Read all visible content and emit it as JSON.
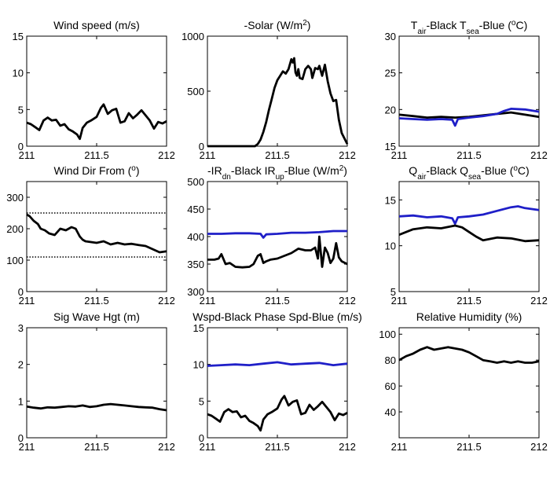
{
  "chart_data": [
    {
      "type": "line",
      "title": "Wind speed (m/s)",
      "xlim": [
        211,
        212
      ],
      "ylim": [
        0,
        15
      ],
      "xticks": [
        "211",
        "211.5",
        "212"
      ],
      "yticks": [
        "0",
        "5",
        "10",
        "15"
      ],
      "series": [
        {
          "color": "#000000",
          "x": [
            211.0,
            211.03,
            211.06,
            211.09,
            211.12,
            211.15,
            211.18,
            211.21,
            211.24,
            211.27,
            211.3,
            211.33,
            211.36,
            211.38,
            211.4,
            211.43,
            211.46,
            211.5,
            211.53,
            211.55,
            211.58,
            211.61,
            211.64,
            211.67,
            211.7,
            211.73,
            211.76,
            211.79,
            211.82,
            211.85,
            211.88,
            211.91,
            211.94,
            211.97,
            212.0
          ],
          "y": [
            3.2,
            3.0,
            2.6,
            2.2,
            3.5,
            3.9,
            3.5,
            3.6,
            2.8,
            3.0,
            2.3,
            2.0,
            1.6,
            1.0,
            2.5,
            3.2,
            3.5,
            4.0,
            5.2,
            5.7,
            4.4,
            4.9,
            5.1,
            3.2,
            3.4,
            4.5,
            3.8,
            4.3,
            4.9,
            4.2,
            3.5,
            2.4,
            3.3,
            3.1,
            3.4
          ]
        }
      ]
    },
    {
      "type": "line",
      "title": "-Solar (W/m²)",
      "title_parts": {
        "main": "-Solar (W/m",
        "sup": "2",
        "end": ")"
      },
      "xlim": [
        211,
        212
      ],
      "ylim": [
        0,
        1000
      ],
      "xticks": [
        "211",
        "211.5",
        "212"
      ],
      "yticks": [
        "0",
        "500",
        "1000"
      ],
      "series": [
        {
          "color": "#000000",
          "x": [
            211.0,
            211.3,
            211.34,
            211.36,
            211.38,
            211.4,
            211.42,
            211.44,
            211.46,
            211.48,
            211.5,
            211.52,
            211.54,
            211.56,
            211.58,
            211.6,
            211.61,
            211.62,
            211.63,
            211.64,
            211.65,
            211.66,
            211.68,
            211.7,
            211.72,
            211.74,
            211.75,
            211.77,
            211.79,
            211.8,
            211.82,
            211.84,
            211.86,
            211.88,
            211.9,
            211.92,
            211.94,
            211.96,
            212.0
          ],
          "y": [
            0,
            0,
            0,
            20,
            60,
            130,
            220,
            330,
            430,
            530,
            600,
            640,
            680,
            660,
            700,
            790,
            760,
            800,
            670,
            640,
            700,
            620,
            610,
            700,
            730,
            700,
            620,
            710,
            700,
            730,
            640,
            740,
            590,
            480,
            410,
            420,
            240,
            120,
            20
          ]
        }
      ]
    },
    {
      "type": "line",
      "title": "T_air-Black  T_sea-Blue (°C)",
      "title_parts": [
        {
          "t": "T",
          "s": "n"
        },
        {
          "t": "air",
          "s": "sub"
        },
        {
          "t": "-Black  T",
          "s": "n"
        },
        {
          "t": "sea",
          "s": "sub"
        },
        {
          "t": "-Blue (",
          "s": "n"
        },
        {
          "t": "o",
          "s": "sup"
        },
        {
          "t": "C)",
          "s": "n"
        }
      ],
      "xlim": [
        211,
        212
      ],
      "ylim": [
        15,
        30
      ],
      "xticks": [
        "211",
        "211.5",
        "212"
      ],
      "yticks": [
        "15",
        "20",
        "25",
        "30"
      ],
      "series": [
        {
          "color": "#000000",
          "x": [
            211.0,
            211.1,
            211.2,
            211.3,
            211.4,
            211.5,
            211.6,
            211.7,
            211.8,
            211.9,
            212.0
          ],
          "y": [
            19.3,
            19.1,
            18.9,
            19.0,
            18.9,
            19.0,
            19.2,
            19.4,
            19.6,
            19.3,
            19.0
          ]
        },
        {
          "color": "#1f1fc8",
          "x": [
            211.0,
            211.1,
            211.2,
            211.3,
            211.38,
            211.4,
            211.42,
            211.5,
            211.6,
            211.7,
            211.75,
            211.8,
            211.9,
            212.0
          ],
          "y": [
            18.8,
            18.7,
            18.6,
            18.7,
            18.6,
            17.8,
            18.7,
            18.9,
            19.1,
            19.4,
            19.8,
            20.1,
            20.0,
            19.7
          ]
        }
      ]
    },
    {
      "type": "line",
      "title": "Wind Dir From (°)",
      "title_parts": {
        "main": "Wind Dir From (",
        "sup": "o",
        "end": ")"
      },
      "xlim": [
        211,
        212
      ],
      "ylim": [
        0,
        350
      ],
      "xticks": [
        "211",
        "211.5",
        "212"
      ],
      "yticks": [
        "0",
        "100",
        "200",
        "300"
      ],
      "reference_lines": [
        250,
        110
      ],
      "series": [
        {
          "color": "#000000",
          "x": [
            211.0,
            211.02,
            211.05,
            211.08,
            211.1,
            211.13,
            211.16,
            211.2,
            211.24,
            211.28,
            211.32,
            211.35,
            211.38,
            211.4,
            211.42,
            211.45,
            211.5,
            211.55,
            211.6,
            211.65,
            211.7,
            211.75,
            211.8,
            211.85,
            211.9,
            211.95,
            212.0
          ],
          "y": [
            245,
            240,
            225,
            215,
            200,
            195,
            185,
            180,
            200,
            195,
            205,
            200,
            175,
            165,
            160,
            158,
            155,
            160,
            150,
            155,
            150,
            152,
            148,
            145,
            135,
            125,
            128
          ]
        }
      ]
    },
    {
      "type": "line",
      "title": "-IR_dn-Black  IR_up-Blue (W/m²)",
      "title_parts": [
        {
          "t": "-IR",
          "s": "n"
        },
        {
          "t": "dn",
          "s": "sub"
        },
        {
          "t": "-Black  IR",
          "s": "n"
        },
        {
          "t": "up",
          "s": "sub"
        },
        {
          "t": "-Blue (W/m",
          "s": "n"
        },
        {
          "t": "2",
          "s": "sup"
        },
        {
          "t": ")",
          "s": "n"
        }
      ],
      "xlim": [
        211,
        212
      ],
      "ylim": [
        300,
        500
      ],
      "xticks": [
        "211",
        "211.5",
        "212"
      ],
      "yticks": [
        "300",
        "350",
        "400",
        "450",
        "500"
      ],
      "series": [
        {
          "color": "#1f1fc8",
          "x": [
            211.0,
            211.1,
            211.2,
            211.3,
            211.38,
            211.4,
            211.42,
            211.5,
            211.6,
            211.7,
            211.8,
            211.9,
            212.0
          ],
          "y": [
            405,
            405,
            406,
            406,
            405,
            398,
            404,
            405,
            407,
            407,
            408,
            410,
            410
          ]
        },
        {
          "color": "#000000",
          "x": [
            211.0,
            211.05,
            211.08,
            211.1,
            211.13,
            211.16,
            211.2,
            211.25,
            211.3,
            211.33,
            211.36,
            211.38,
            211.4,
            211.42,
            211.45,
            211.5,
            211.55,
            211.6,
            211.65,
            211.7,
            211.74,
            211.77,
            211.79,
            211.8,
            211.82,
            211.84,
            211.86,
            211.88,
            211.9,
            211.92,
            211.94,
            211.96,
            212.0
          ],
          "y": [
            358,
            358,
            360,
            368,
            350,
            352,
            345,
            344,
            345,
            350,
            365,
            368,
            352,
            355,
            358,
            360,
            365,
            370,
            378,
            375,
            375,
            380,
            360,
            400,
            345,
            380,
            370,
            352,
            360,
            388,
            362,
            355,
            350
          ]
        }
      ]
    },
    {
      "type": "line",
      "title": "Q_air-Black  Q_sea-Blue (°C)",
      "title_parts": [
        {
          "t": "Q",
          "s": "n"
        },
        {
          "t": "air",
          "s": "sub"
        },
        {
          "t": "-Black  Q",
          "s": "n"
        },
        {
          "t": "sea",
          "s": "sub"
        },
        {
          "t": "-Blue (",
          "s": "n"
        },
        {
          "t": "o",
          "s": "sup"
        },
        {
          "t": "C)",
          "s": "n"
        }
      ],
      "xlim": [
        211,
        212
      ],
      "ylim": [
        5,
        17
      ],
      "xticks": [
        "211",
        "211.5",
        "212"
      ],
      "yticks": [
        "5",
        "10",
        "15"
      ],
      "series": [
        {
          "color": "#1f1fc8",
          "x": [
            211.0,
            211.1,
            211.2,
            211.3,
            211.38,
            211.4,
            211.42,
            211.5,
            211.6,
            211.7,
            211.8,
            211.85,
            211.9,
            212.0
          ],
          "y": [
            13.2,
            13.3,
            13.1,
            13.2,
            13.0,
            12.4,
            13.1,
            13.2,
            13.4,
            13.8,
            14.2,
            14.3,
            14.1,
            13.9
          ]
        },
        {
          "color": "#000000",
          "x": [
            211.0,
            211.05,
            211.1,
            211.2,
            211.3,
            211.4,
            211.45,
            211.5,
            211.55,
            211.6,
            211.7,
            211.8,
            211.9,
            212.0
          ],
          "y": [
            11.2,
            11.5,
            11.8,
            12.0,
            11.9,
            12.2,
            12.0,
            11.5,
            11.0,
            10.6,
            10.9,
            10.8,
            10.5,
            10.6
          ]
        }
      ]
    },
    {
      "type": "line",
      "title": "Sig Wave Hgt (m)",
      "xlim": [
        211,
        212
      ],
      "ylim": [
        0,
        3
      ],
      "xticks": [
        "211",
        "211.5",
        "212"
      ],
      "yticks": [
        "0",
        "1",
        "2",
        "3"
      ],
      "series": [
        {
          "color": "#000000",
          "x": [
            211.0,
            211.05,
            211.1,
            211.15,
            211.2,
            211.25,
            211.3,
            211.35,
            211.4,
            211.45,
            211.5,
            211.55,
            211.6,
            211.65,
            211.7,
            211.75,
            211.8,
            211.85,
            211.9,
            211.95,
            212.0
          ],
          "y": [
            0.85,
            0.82,
            0.8,
            0.83,
            0.82,
            0.84,
            0.86,
            0.85,
            0.88,
            0.84,
            0.86,
            0.9,
            0.92,
            0.9,
            0.88,
            0.86,
            0.84,
            0.83,
            0.82,
            0.78,
            0.75
          ]
        }
      ]
    },
    {
      "type": "line",
      "title": "Wspd-Black  Phase Spd-Blue (m/s)",
      "xlim": [
        211,
        212
      ],
      "ylim": [
        0,
        15
      ],
      "xticks": [
        "211",
        "211.5",
        "212"
      ],
      "yticks": [
        "0",
        "5",
        "10",
        "15"
      ],
      "series": [
        {
          "color": "#1f1fc8",
          "x": [
            211.0,
            211.1,
            211.2,
            211.3,
            211.4,
            211.5,
            211.6,
            211.7,
            211.8,
            211.9,
            212.0
          ],
          "y": [
            9.8,
            9.9,
            10.0,
            9.9,
            10.1,
            10.3,
            10.0,
            10.1,
            10.2,
            9.9,
            10.1
          ]
        },
        {
          "color": "#000000",
          "x": [
            211.0,
            211.03,
            211.06,
            211.09,
            211.12,
            211.15,
            211.18,
            211.21,
            211.24,
            211.27,
            211.3,
            211.33,
            211.36,
            211.38,
            211.4,
            211.43,
            211.46,
            211.5,
            211.53,
            211.55,
            211.58,
            211.61,
            211.64,
            211.67,
            211.7,
            211.73,
            211.76,
            211.79,
            211.82,
            211.85,
            211.88,
            211.91,
            211.94,
            211.97,
            212.0
          ],
          "y": [
            3.2,
            3.0,
            2.6,
            2.2,
            3.5,
            3.9,
            3.5,
            3.6,
            2.8,
            3.0,
            2.3,
            2.0,
            1.6,
            1.0,
            2.5,
            3.2,
            3.5,
            4.0,
            5.2,
            5.7,
            4.4,
            4.9,
            5.1,
            3.2,
            3.4,
            4.5,
            3.8,
            4.3,
            4.9,
            4.2,
            3.5,
            2.4,
            3.3,
            3.1,
            3.4
          ]
        }
      ]
    },
    {
      "type": "line",
      "title": "Relative Humidity (%)",
      "xlim": [
        211,
        212
      ],
      "ylim": [
        20,
        105
      ],
      "xticks": [
        "211",
        "211.5",
        "212"
      ],
      "yticks": [
        "40",
        "60",
        "80",
        "100"
      ],
      "series": [
        {
          "color": "#000000",
          "x": [
            211.0,
            211.05,
            211.1,
            211.15,
            211.2,
            211.25,
            211.3,
            211.35,
            211.4,
            211.45,
            211.5,
            211.55,
            211.6,
            211.65,
            211.7,
            211.75,
            211.8,
            211.85,
            211.9,
            211.95,
            212.0
          ],
          "y": [
            80,
            83,
            85,
            88,
            90,
            88,
            89,
            90,
            89,
            88,
            86,
            83,
            80,
            79,
            78,
            79,
            78,
            79,
            78,
            78,
            79
          ]
        }
      ]
    }
  ]
}
